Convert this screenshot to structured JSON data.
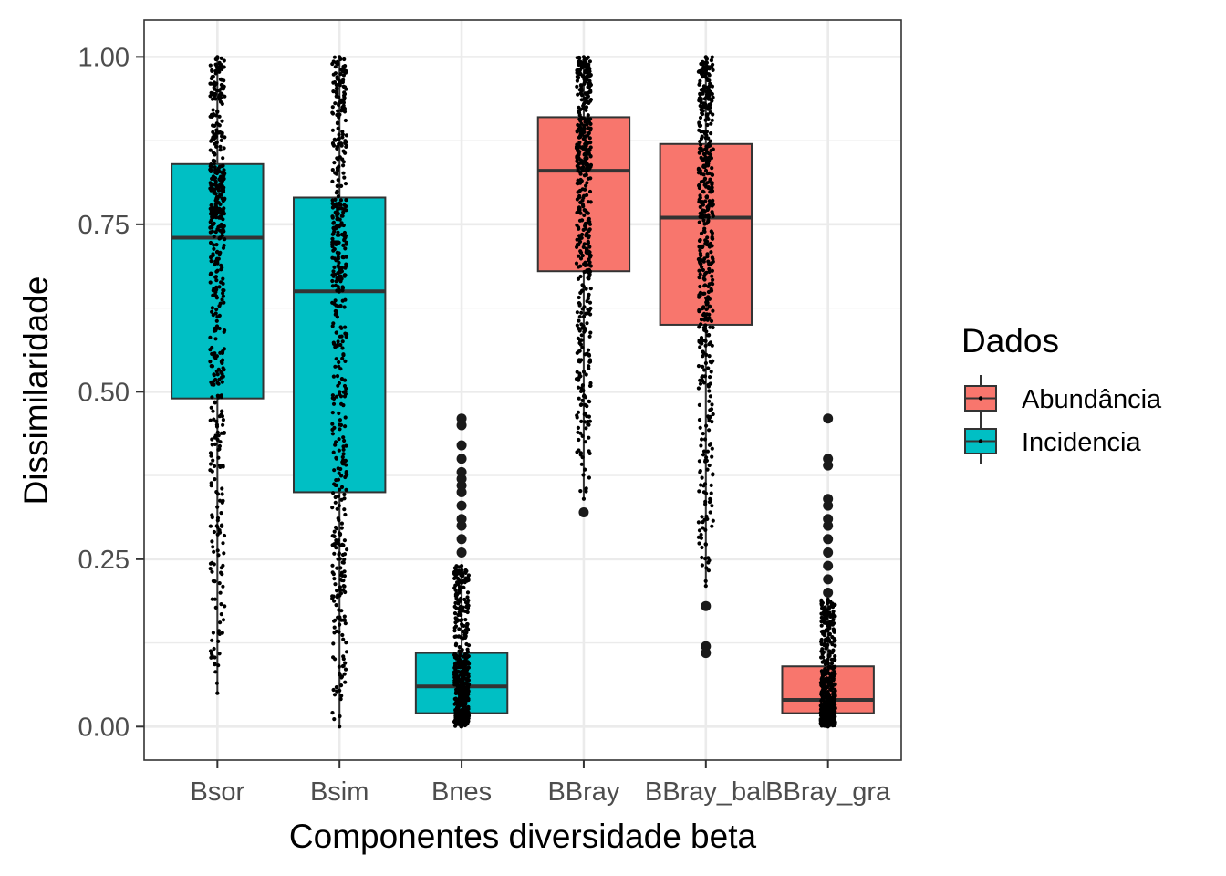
{
  "chart_data": {
    "type": "boxplot",
    "xlabel": "Componentes diversidade beta",
    "ylabel": "Dissimilaridade",
    "ylim": [
      -0.05,
      1.055
    ],
    "y_ticks": [
      "0.00",
      "0.25",
      "0.50",
      "0.75",
      "1.00"
    ],
    "grid": true,
    "legend": {
      "title": "Dados",
      "position": "right",
      "entries": [
        {
          "label": "Abundância",
          "color": "#F8766D"
        },
        {
          "label": "Incidencia",
          "color": "#00BFC4"
        }
      ]
    },
    "categories": [
      "Bsor",
      "Bsim",
      "Bnes",
      "BBray",
      "BBray_bal",
      "BBray_gra"
    ],
    "boxes": [
      {
        "category": "Bsor",
        "group": "Incidencia",
        "whisker_low": 0.05,
        "q1": 0.49,
        "median": 0.73,
        "q3": 0.84,
        "whisker_high": 1.0,
        "outliers": []
      },
      {
        "category": "Bsim",
        "group": "Incidencia",
        "whisker_low": 0.0,
        "q1": 0.35,
        "median": 0.65,
        "q3": 0.79,
        "whisker_high": 1.0,
        "outliers": []
      },
      {
        "category": "Bnes",
        "group": "Incidencia",
        "whisker_low": 0.0,
        "q1": 0.02,
        "median": 0.06,
        "q3": 0.11,
        "whisker_high": 0.24,
        "outliers": [
          0.26,
          0.28,
          0.3,
          0.31,
          0.33,
          0.35,
          0.36,
          0.37,
          0.38,
          0.4,
          0.42,
          0.45,
          0.46
        ]
      },
      {
        "category": "BBray",
        "group": "Abundância",
        "whisker_low": 0.34,
        "q1": 0.68,
        "median": 0.83,
        "q3": 0.91,
        "whisker_high": 1.0,
        "outliers": [
          0.32
        ]
      },
      {
        "category": "BBray_bal",
        "group": "Abundância",
        "whisker_low": 0.21,
        "q1": 0.6,
        "median": 0.76,
        "q3": 0.87,
        "whisker_high": 1.0,
        "outliers": [
          0.11,
          0.12,
          0.18
        ]
      },
      {
        "category": "BBray_gra",
        "group": "Abundância",
        "whisker_low": 0.0,
        "q1": 0.02,
        "median": 0.04,
        "q3": 0.09,
        "whisker_high": 0.19,
        "outliers": [
          0.2,
          0.22,
          0.24,
          0.26,
          0.28,
          0.3,
          0.31,
          0.33,
          0.34,
          0.39,
          0.4,
          0.46
        ]
      }
    ],
    "jitter_points_per_box": 500
  }
}
